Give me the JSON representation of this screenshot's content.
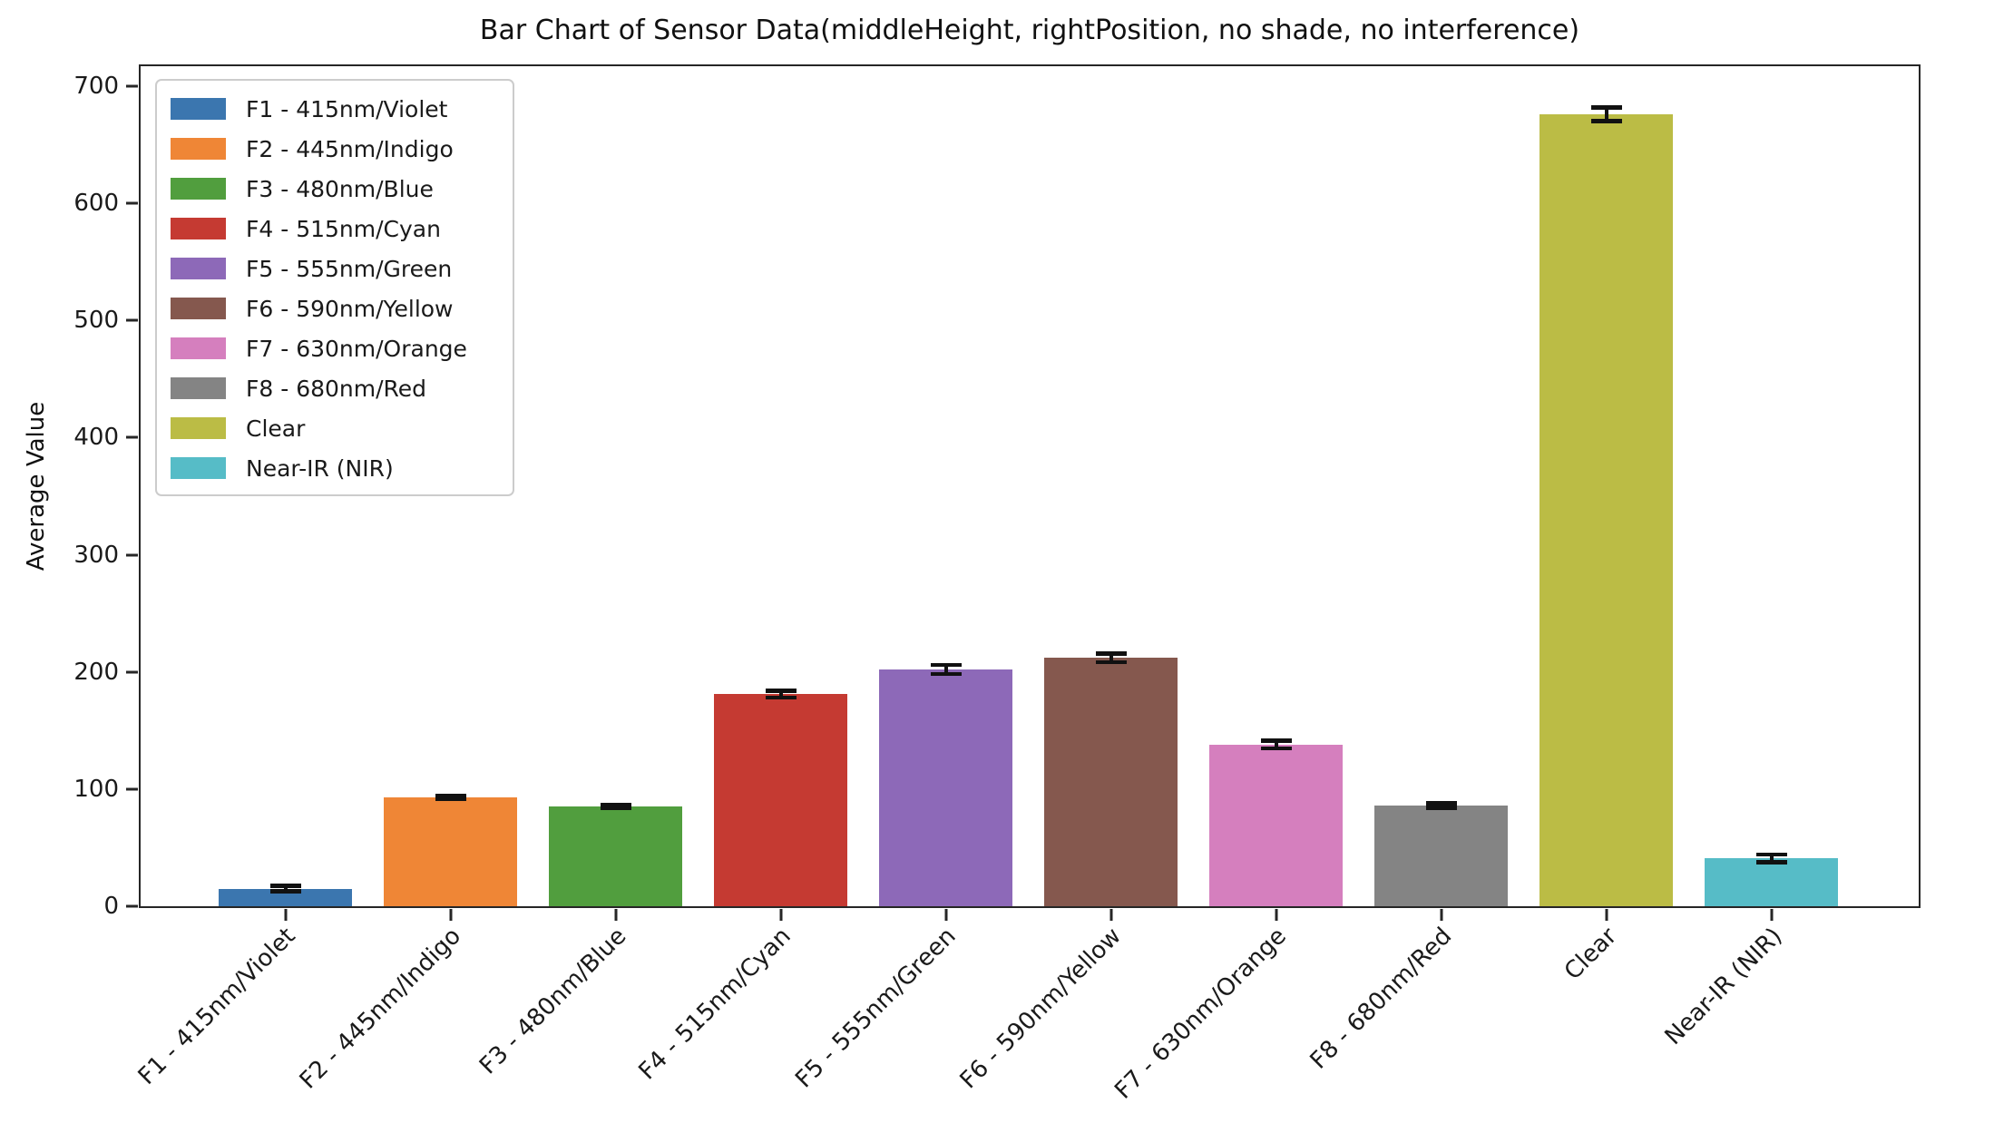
{
  "chart_data": {
    "type": "bar",
    "title": "Bar Chart of Sensor Data(middleHeight, rightPosition, no shade, no interference)",
    "xlabel": "",
    "ylabel": "Average Value",
    "ylim": [
      0,
      717
    ],
    "yticks": [
      0,
      100,
      200,
      300,
      400,
      500,
      600,
      700
    ],
    "grid": false,
    "legend_position": "upper left",
    "categories": [
      "F1 - 415nm/Violet",
      "F2 - 445nm/Indigo",
      "F3 - 480nm/Blue",
      "F4 - 515nm/Cyan",
      "F5 - 555nm/Green",
      "F6 - 590nm/Yellow",
      "F7 - 630nm/Orange",
      "F8 - 680nm/Red",
      "Clear",
      "Near-IR (NIR)"
    ],
    "values": [
      15,
      93,
      85,
      181,
      202,
      212,
      138,
      86,
      676,
      41
    ],
    "errors": [
      2.5,
      1.5,
      1.5,
      3,
      4,
      4,
      3.5,
      2,
      6,
      3.5
    ],
    "colors": [
      "#3b76af",
      "#ef8636",
      "#519e3e",
      "#c53a32",
      "#8d69b8",
      "#85584e",
      "#d57fbe",
      "#848484",
      "#bbbc45",
      "#56bcc7"
    ],
    "error_bar_color": "#111111",
    "axis_color": "#262626"
  }
}
